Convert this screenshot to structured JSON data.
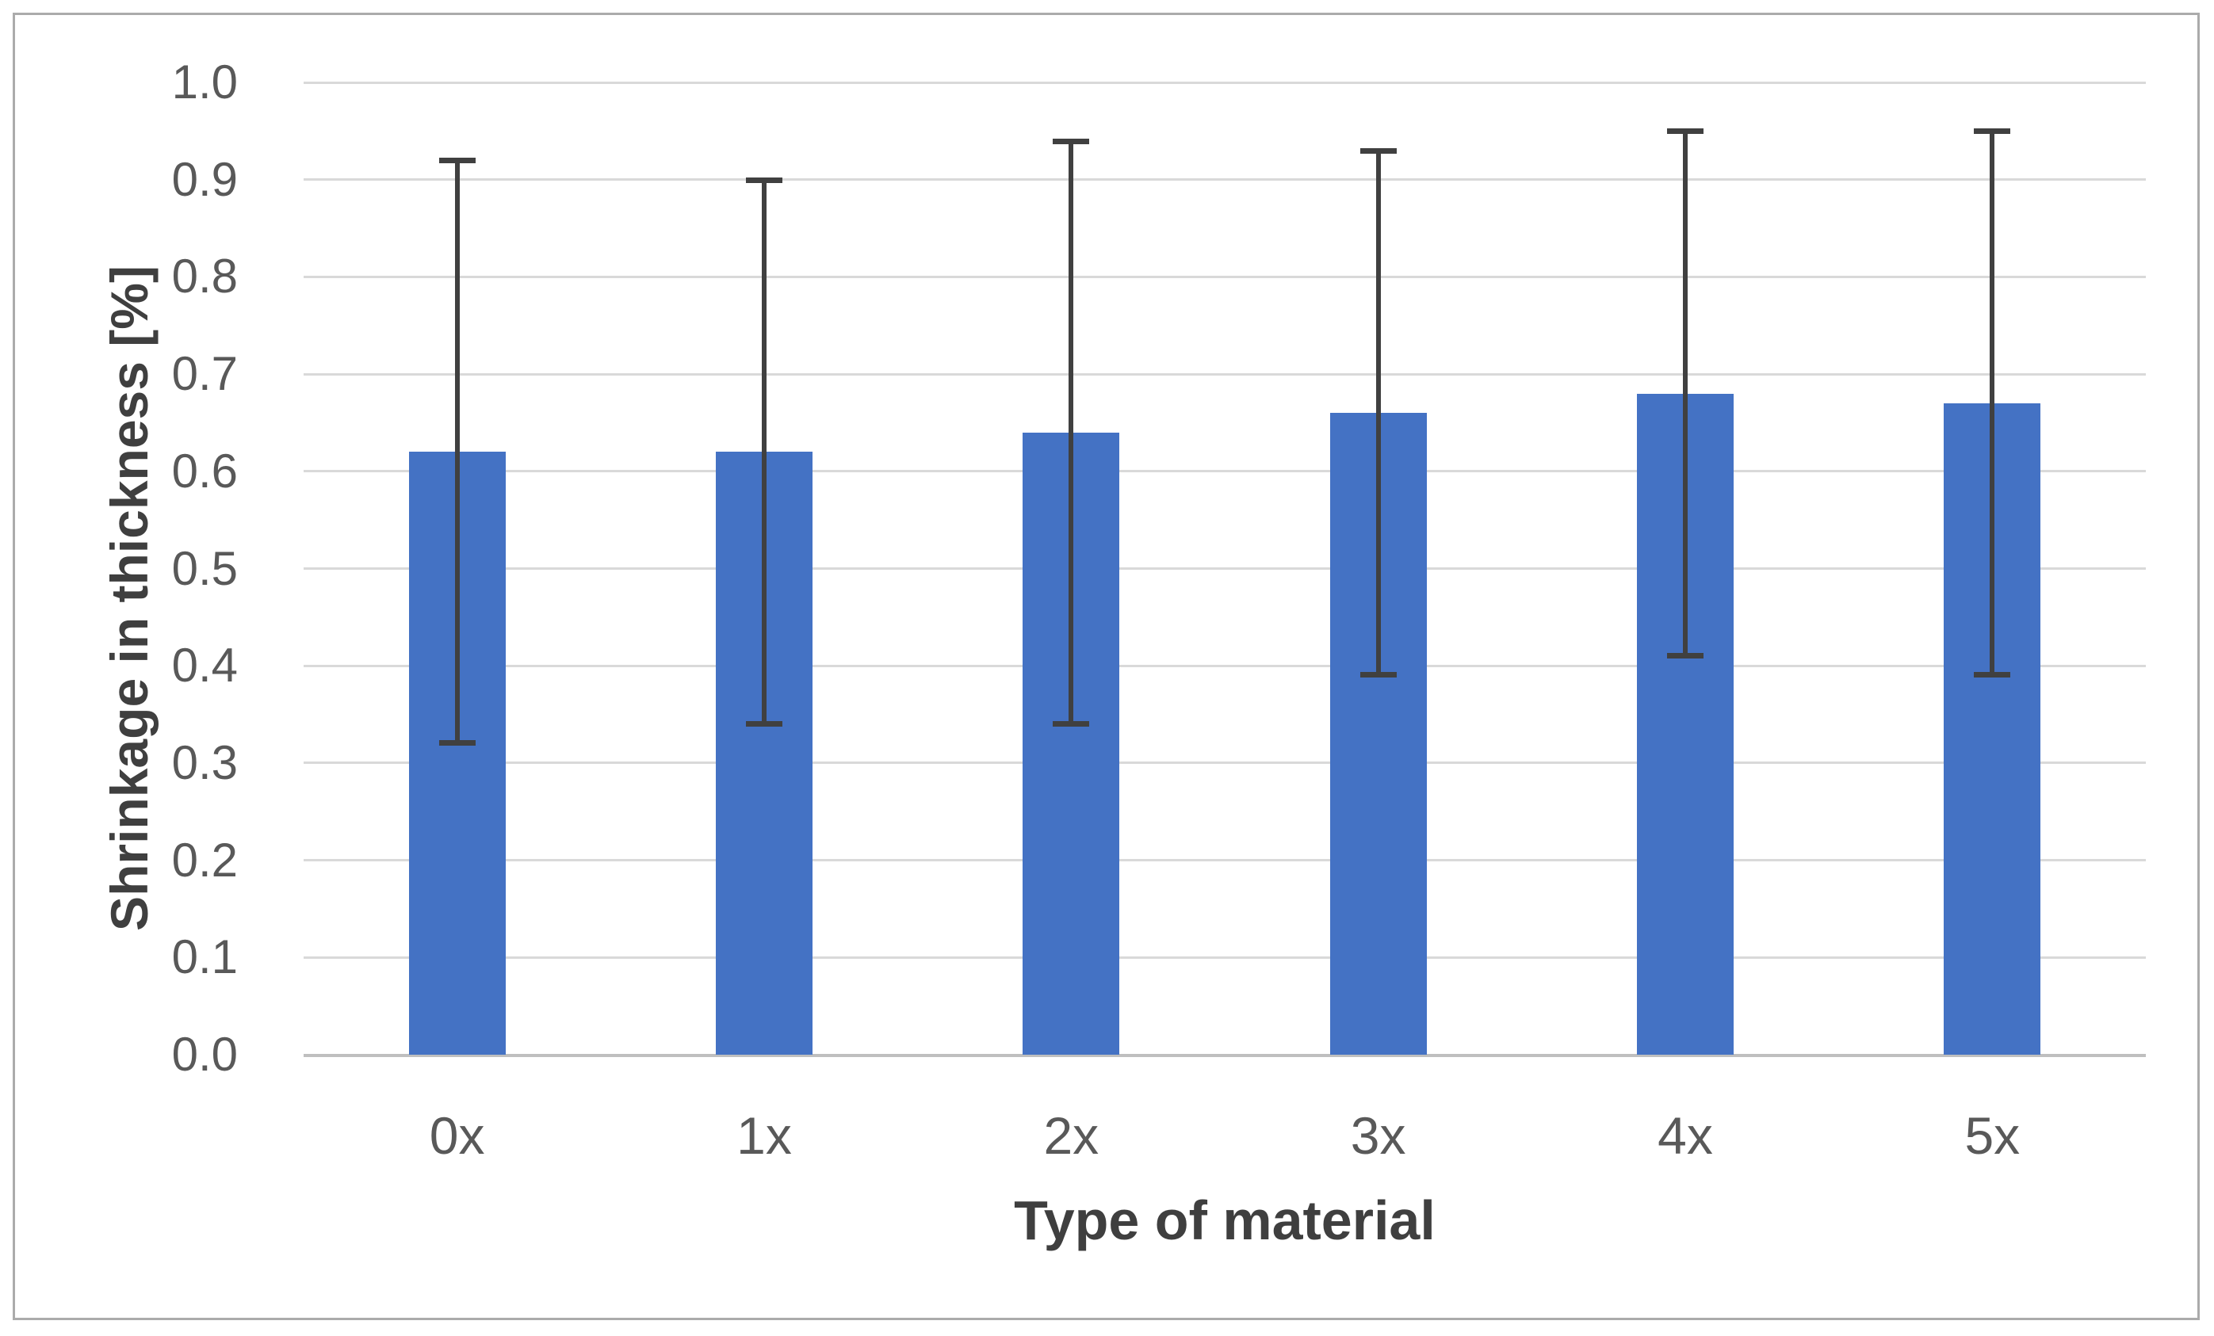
{
  "chart_data": {
    "type": "bar",
    "categories": [
      "0x",
      "1x",
      "2x",
      "3x",
      "4x",
      "5x"
    ],
    "values": [
      0.62,
      0.62,
      0.64,
      0.66,
      0.68,
      0.67
    ],
    "error_low": [
      0.32,
      0.34,
      0.34,
      0.39,
      0.41,
      0.39
    ],
    "error_high": [
      0.92,
      0.9,
      0.94,
      0.93,
      0.95,
      0.95
    ],
    "title": "",
    "xlabel": "Type of material",
    "ylabel": "Shrinkage in thickness [%]",
    "ylim": [
      0.0,
      1.0
    ],
    "ytick_step": 0.1,
    "ytick_labels": [
      "1.0",
      "0.9",
      "0.8",
      "0.7",
      "0.6",
      "0.5",
      "0.4",
      "0.3",
      "0.2",
      "0.1",
      "0.0"
    ],
    "grid": true,
    "legend": false,
    "error_bar_style": "both-ends-with-caps",
    "colors": {
      "bar": "#4472C4",
      "error": "#404040",
      "gridline": "#D9D9D9",
      "axis_line": "#BFBFBF",
      "tick_text": "#595959",
      "title_text": "#3F3F3F",
      "frame_border": "#ABABAB",
      "background": "#FFFFFF"
    }
  }
}
